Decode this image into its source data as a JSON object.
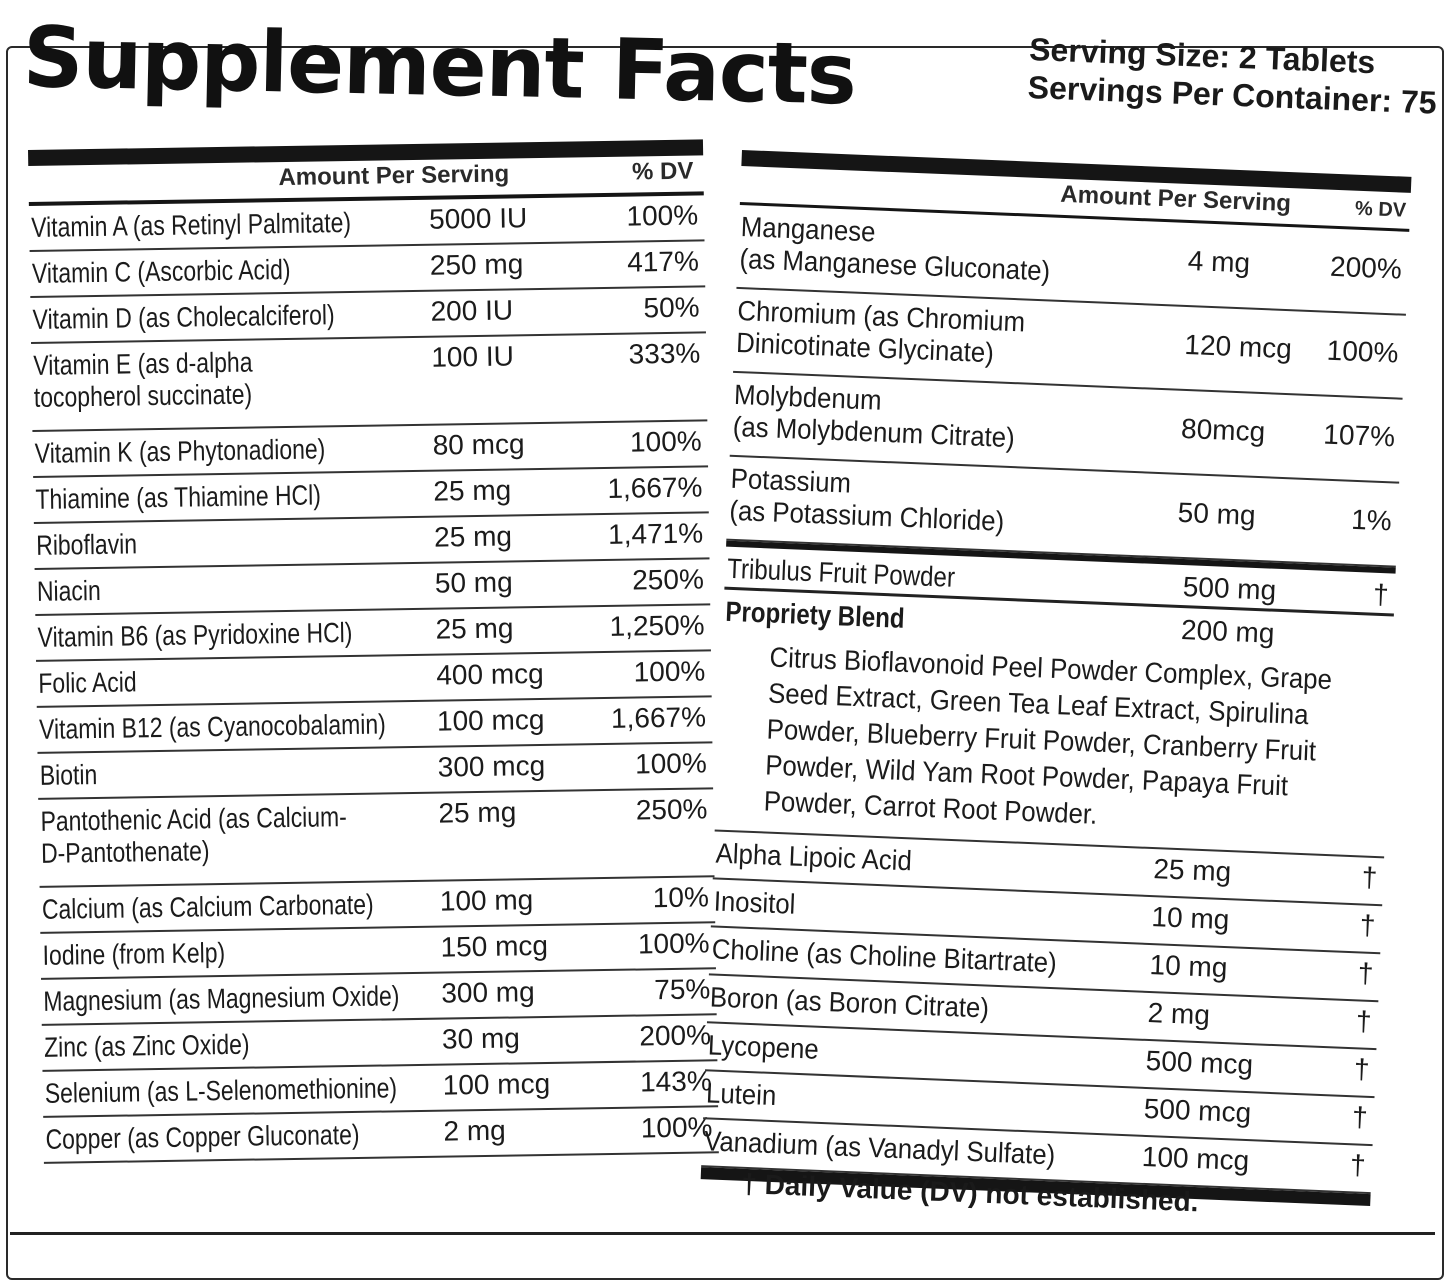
{
  "title": "Supplement Facts",
  "serving": {
    "size": "Serving Size: 2 Tablets",
    "per_container": "Servings Per Container: 75"
  },
  "headers": {
    "amount": "Amount Per Serving",
    "dv": "% DV"
  },
  "left_rows": [
    {
      "name": "Vitamin A (as Retinyl Palmitate)",
      "amount": "5000 IU",
      "dv": "100%"
    },
    {
      "name": "Vitamin C (Ascorbic Acid)",
      "amount": "250 mg",
      "dv": "417%"
    },
    {
      "name": "Vitamin D (as Cholecalciferol)",
      "amount": "200 IU",
      "dv": "50%"
    },
    {
      "name": "Vitamin E (as d-alpha\ntocopherol succinate)",
      "amount": "100 IU",
      "dv": "333%"
    },
    {
      "name": "Vitamin K (as Phytonadione)",
      "amount": "80 mcg",
      "dv": "100%"
    },
    {
      "name": "Thiamine (as Thiamine HCl)",
      "amount": "25 mg",
      "dv": "1,667%"
    },
    {
      "name": "Riboflavin",
      "amount": "25 mg",
      "dv": "1,471%"
    },
    {
      "name": "Niacin",
      "amount": "50 mg",
      "dv": "250%"
    },
    {
      "name": "Vitamin B6 (as Pyridoxine HCl)",
      "amount": "25 mg",
      "dv": "1,250%"
    },
    {
      "name": "Folic Acid",
      "amount": "400 mcg",
      "dv": "100%"
    },
    {
      "name": "Vitamin B12 (as Cyanocobalamin)",
      "amount": "100 mcg",
      "dv": "1,667%"
    },
    {
      "name": "Biotin",
      "amount": "300 mcg",
      "dv": "100%"
    },
    {
      "name": "Pantothenic Acid (as Calcium-\nD-Pantothenate)",
      "amount": "25 mg",
      "dv": "250%"
    },
    {
      "name": "Calcium (as Calcium Carbonate)",
      "amount": "100 mg",
      "dv": "10%"
    },
    {
      "name": "Iodine (from Kelp)",
      "amount": "150 mcg",
      "dv": "100%"
    },
    {
      "name": "Magnesium (as Magnesium Oxide)",
      "amount": "300 mg",
      "dv": "75%"
    },
    {
      "name": "Zinc (as Zinc Oxide)",
      "amount": "30 mg",
      "dv": "200%"
    },
    {
      "name": "Selenium (as L-Selenomethionine)",
      "amount": "100 mcg",
      "dv": "143%"
    },
    {
      "name": "Copper (as Copper Gluconate)",
      "amount": "2 mg",
      "dv": "100%"
    }
  ],
  "right_rows": [
    {
      "name": "Manganese\n(as Manganese Gluconate)",
      "amount": "4 mg",
      "dv": "200%"
    },
    {
      "name": "Chromium (as Chromium\nDinicotinate Glycinate)",
      "amount": "120 mcg",
      "dv": "100%"
    },
    {
      "name": "Molybdenum\n(as Molybdenum Citrate)",
      "amount": "80mcg",
      "dv": "107%"
    },
    {
      "name": "Potassium\n(as Potassium Chloride)",
      "amount": "50 mg",
      "dv": "1%"
    }
  ],
  "tribulus": {
    "name": "Tribulus Fruit Powder",
    "amount": "500 mg",
    "dv": "†"
  },
  "blend": {
    "name": "Propriety Blend",
    "amount": "200 mg",
    "ingredients": "Citrus Bioflavonoid Peel Powder Complex, Grape Seed Extract, Green Tea Leaf Extract, Spirulina Powder, Blueberry Fruit Powder, Cranberry Fruit Powder, Wild Yam Root Powder, Papaya Fruit Powder, Carrot Root Powder."
  },
  "right_rows_2": [
    {
      "name": "Alpha Lipoic Acid",
      "amount": "25 mg",
      "dv": "†"
    },
    {
      "name": "Inositol",
      "amount": "10 mg",
      "dv": "†"
    },
    {
      "name": "Choline (as Choline Bitartrate)",
      "amount": "10 mg",
      "dv": "†"
    },
    {
      "name": "Boron (as Boron Citrate)",
      "amount": "2 mg",
      "dv": "†"
    },
    {
      "name": "Lycopene",
      "amount": "500 mcg",
      "dv": "†"
    },
    {
      "name": "Lutein",
      "amount": "500 mcg",
      "dv": "†"
    },
    {
      "name": "Vanadium (as Vanadyl Sulfate)",
      "amount": "100 mcg",
      "dv": "†"
    }
  ],
  "footnote": "† Daily Value (DV) not established."
}
